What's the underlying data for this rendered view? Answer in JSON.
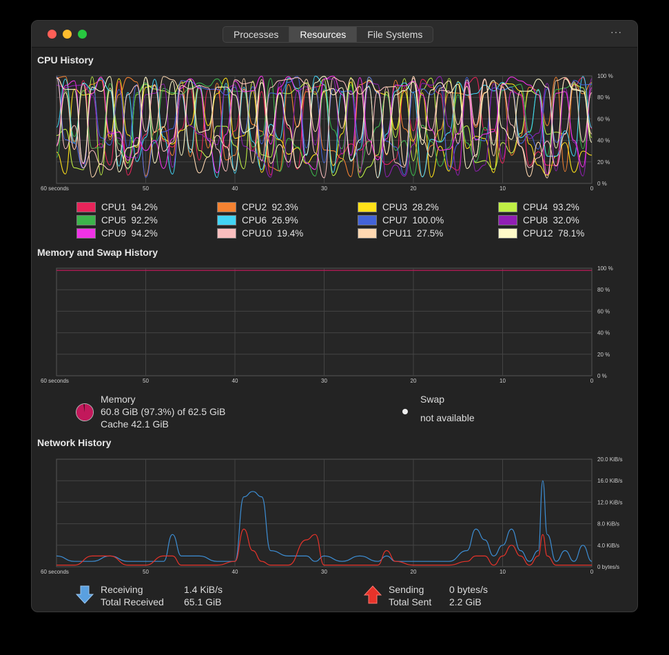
{
  "tabs": [
    {
      "label": "Processes",
      "active": false
    },
    {
      "label": "Resources",
      "active": true
    },
    {
      "label": "File Systems",
      "active": false
    }
  ],
  "menu_icon": "more-dots-icon",
  "cpu": {
    "title": "CPU History",
    "y_ticks": [
      "100 %",
      "80 %",
      "60 %",
      "40 %",
      "20 %",
      "0 %"
    ],
    "x_ticks": [
      "60 seconds",
      "50",
      "40",
      "30",
      "20",
      "10",
      "0"
    ],
    "legend": [
      {
        "label": "CPU1",
        "value": "94.2%",
        "color": "#e8245a"
      },
      {
        "label": "CPU2",
        "value": "92.3%",
        "color": "#f58231"
      },
      {
        "label": "CPU3",
        "value": "28.2%",
        "color": "#ffe119"
      },
      {
        "label": "CPU4",
        "value": "93.2%",
        "color": "#bfef45"
      },
      {
        "label": "CPU5",
        "value": "92.2%",
        "color": "#3cb44b"
      },
      {
        "label": "CPU6",
        "value": "26.9%",
        "color": "#42d4f4"
      },
      {
        "label": "CPU7",
        "value": "100.0%",
        "color": "#4363d8"
      },
      {
        "label": "CPU8",
        "value": "32.0%",
        "color": "#911eb4"
      },
      {
        "label": "CPU9",
        "value": "94.2%",
        "color": "#f032e6"
      },
      {
        "label": "CPU10",
        "value": "19.4%",
        "color": "#fabebe"
      },
      {
        "label": "CPU11",
        "value": "27.5%",
        "color": "#ffd8b1"
      },
      {
        "label": "CPU12",
        "value": "78.1%",
        "color": "#fffac8"
      }
    ]
  },
  "memory": {
    "title": "Memory and Swap History",
    "y_ticks": [
      "100 %",
      "80 %",
      "60 %",
      "40 %",
      "20 %",
      "0 %"
    ],
    "x_ticks": [
      "60 seconds",
      "50",
      "40",
      "30",
      "20",
      "10",
      "0"
    ],
    "memory_percent": 97.3,
    "memory_color": "#c2185b",
    "memory_label": "Memory",
    "memory_usage": "60.8 GiB (97.3%) of 62.5 GiB",
    "cache": "Cache 42.1 GiB",
    "swap_label": "Swap",
    "swap_status": "not available"
  },
  "network": {
    "title": "Network History",
    "y_ticks": [
      "20.0 KiB/s",
      "16.0 KiB/s",
      "12.0 KiB/s",
      "8.0 KiB/s",
      "4.0 KiB/s",
      "0 bytes/s"
    ],
    "x_ticks": [
      "60 seconds",
      "50",
      "40",
      "30",
      "20",
      "10",
      "0"
    ],
    "receive_color": "#3d8fd6",
    "send_color": "#e8332a",
    "receiving_label": "Receiving",
    "receiving_value": "1.4 KiB/s",
    "total_received_label": "Total Received",
    "total_received_value": "65.1 GiB",
    "sending_label": "Sending",
    "sending_value": "0 bytes/s",
    "total_sent_label": "Total Sent",
    "total_sent_value": "2.2 GiB"
  },
  "chart_data": [
    {
      "type": "line",
      "title": "CPU History",
      "ylim": [
        0,
        100
      ],
      "ylabel": "%",
      "xlabel": "seconds",
      "note_series_count": 12
    },
    {
      "type": "line",
      "title": "Memory and Swap History",
      "ylim": [
        0,
        100
      ],
      "series": [
        {
          "name": "Memory",
          "values": [
            98,
            98,
            98,
            98,
            98,
            98,
            98
          ]
        }
      ],
      "x": [
        60,
        50,
        40,
        30,
        20,
        10,
        0
      ]
    },
    {
      "type": "line",
      "title": "Network History",
      "ylim": [
        0,
        20
      ],
      "ylabel": "KiB/s",
      "x": [
        60,
        58,
        56,
        54,
        52,
        50,
        48,
        47,
        46,
        44,
        42,
        40,
        39,
        38,
        37,
        36,
        34,
        32,
        31,
        30,
        28,
        26,
        24,
        23,
        22,
        20,
        18,
        16,
        14,
        13,
        12,
        11,
        10,
        9,
        8,
        7,
        6,
        5.5,
        5,
        4,
        3,
        2,
        1,
        0
      ],
      "series": [
        {
          "name": "Receiving",
          "values": [
            2,
            1,
            1,
            2,
            1,
            1,
            1,
            6,
            2,
            2,
            1,
            1,
            13,
            14,
            13,
            3,
            2,
            2,
            1,
            2,
            1,
            2,
            1,
            2,
            1,
            1,
            1,
            1,
            3,
            7,
            5,
            2,
            4,
            7,
            3,
            1,
            3,
            16,
            6,
            1,
            3,
            1,
            4,
            1
          ]
        },
        {
          "name": "Sending",
          "values": [
            0.3,
            0.3,
            2,
            2,
            0.3,
            0.3,
            2,
            2,
            0.3,
            0.3,
            0.3,
            1,
            7,
            3,
            1,
            0.3,
            0.3,
            5,
            6,
            0.3,
            0.3,
            0.3,
            0.3,
            3,
            1,
            0.3,
            0.3,
            0.3,
            1,
            2,
            2,
            0.3,
            2,
            4,
            2,
            0.3,
            2,
            6,
            2,
            0.3,
            0.3,
            0.3,
            0.3,
            0.3
          ]
        }
      ]
    }
  ]
}
